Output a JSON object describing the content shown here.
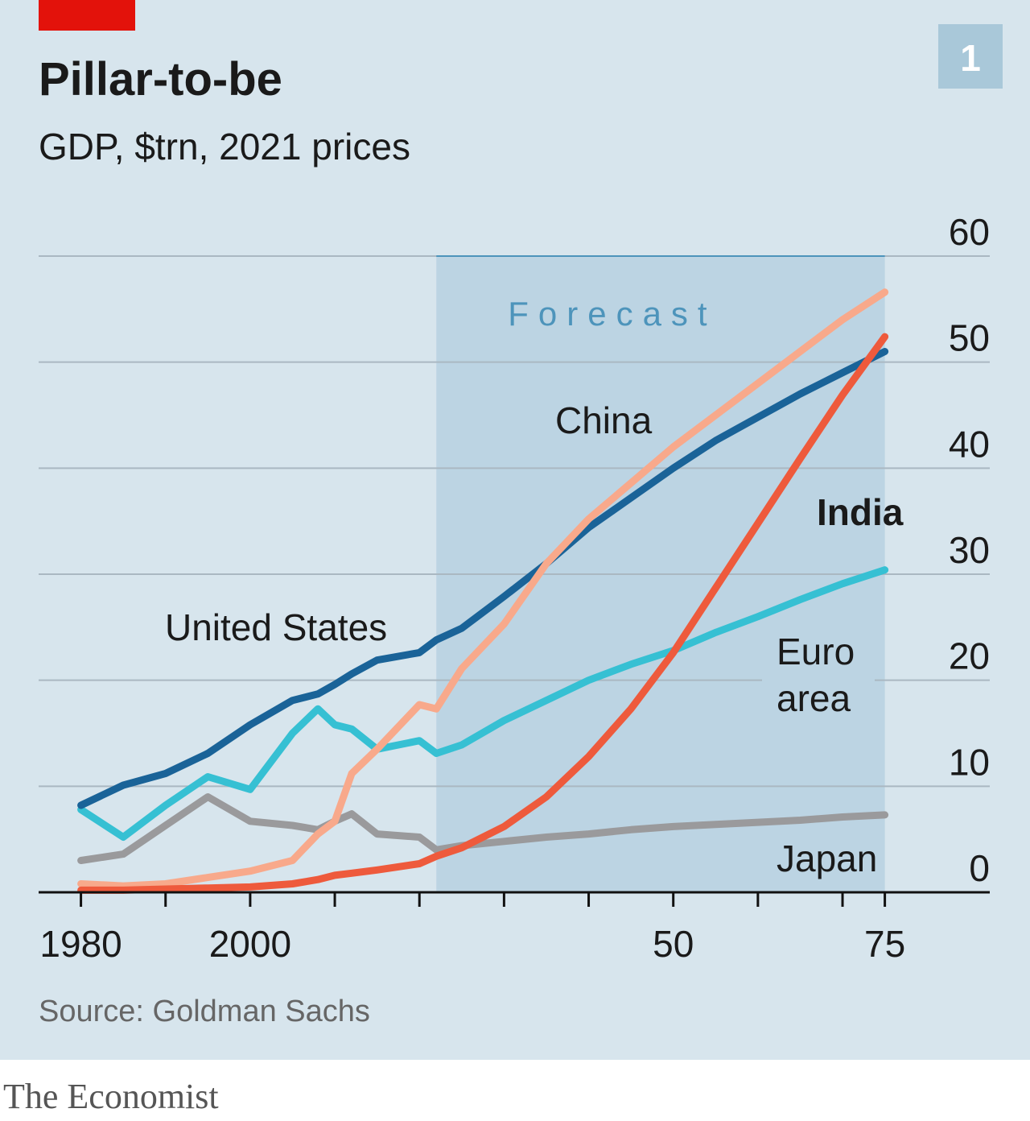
{
  "chart_data": {
    "type": "line",
    "title": "Pillar-to-be",
    "subtitle": "GDP, $trn, 2021 prices",
    "badge": "1",
    "annotation": "Forecast",
    "forecast_range": [
      2022,
      2075
    ],
    "source": "Source: Goldman Sachs",
    "footer": "The Economist",
    "x": [
      1980,
      1985,
      1990,
      1995,
      2000,
      2005,
      2008,
      2010,
      2012,
      2015,
      2020,
      2022,
      2025,
      2030,
      2035,
      2040,
      2045,
      2050,
      2055,
      2060,
      2065,
      2070,
      2075
    ],
    "series": [
      {
        "name": "Japan",
        "color": "#9a9a9c",
        "values": [
          3,
          3.6,
          6.3,
          9,
          6.7,
          6.3,
          5.9,
          6.7,
          7.4,
          5.5,
          5.2,
          4.0,
          4.4,
          4.8,
          5.2,
          5.5,
          5.9,
          6.2,
          6.4,
          6.6,
          6.8,
          7.1,
          7.3
        ]
      },
      {
        "name": "Euro area",
        "color": "#36c0d3",
        "values": [
          7.8,
          5.2,
          8.2,
          10.9,
          9.7,
          15,
          17.3,
          15.8,
          15.4,
          13.5,
          14.3,
          13.1,
          13.9,
          16.2,
          18.1,
          20,
          21.5,
          22.8,
          24.5,
          26,
          27.6,
          29.1,
          30.4
        ]
      },
      {
        "name": "United States",
        "color": "#1a6398",
        "values": [
          8.2,
          10.1,
          11.2,
          13.1,
          15.8,
          18.1,
          18.7,
          19.6,
          20.6,
          21.9,
          22.6,
          23.8,
          24.9,
          27.9,
          31,
          34.4,
          37.2,
          40,
          42.6,
          44.8,
          47,
          49,
          51
        ]
      },
      {
        "name": "China",
        "color": "#f8a98b",
        "values": [
          0.8,
          0.6,
          0.8,
          1.4,
          2.0,
          3.0,
          5.5,
          6.7,
          11.2,
          13.5,
          17.7,
          17.3,
          21.1,
          25.3,
          31,
          35.2,
          38.6,
          42,
          45,
          48,
          51,
          54,
          56.6
        ]
      },
      {
        "name": "India",
        "color": "#ee5a3c",
        "values": [
          0.2,
          0.2,
          0.3,
          0.4,
          0.5,
          0.8,
          1.2,
          1.6,
          1.8,
          2.1,
          2.7,
          3.4,
          4.2,
          6.2,
          9,
          12.8,
          17.3,
          22.6,
          28.7,
          34.8,
          40.9,
          46.9,
          52.4
        ]
      }
    ],
    "xlim": [
      1975,
      2087.4
    ],
    "xticks": [
      1980,
      2000,
      {
        "value": 2050,
        "label": "50"
      },
      {
        "value": 2075,
        "label": "75"
      }
    ],
    "xticks_minor": [
      1990,
      2010,
      2020,
      2030,
      2040,
      2060,
      2070
    ],
    "ylim": [
      0,
      60
    ],
    "yticks": [
      0,
      10,
      20,
      30,
      40,
      50,
      60
    ],
    "grid": true
  }
}
